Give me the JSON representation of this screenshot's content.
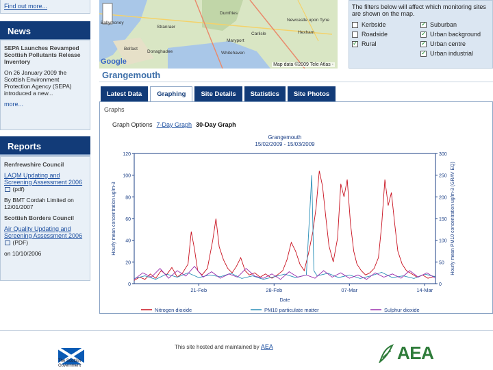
{
  "sidebar": {
    "top_link": "Find out more...",
    "news": {
      "heading": "News",
      "headline": "SEPA Launches Revamped Scottish Pollutants Release Inventory",
      "text": "On 26 January 2009 the Scottish Environment Protection Agency (SEPA) introduced a new...",
      "more": "more..."
    },
    "reports": {
      "heading": "Reports",
      "council1": "Renfrewshire Council",
      "link1": "LAQM Updating and Screening Assessment 2006",
      "link1_suffix": "(pdf)",
      "by1": "By BMT Cordah Limited on 12/01/2007",
      "council2": "Scottish Borders Council",
      "link2": "Air Quality Updating and Screening Assessment 2006",
      "link2_suffix": "(PDF)",
      "by2": "on 10/10/2006"
    }
  },
  "map": {
    "copyright": "Map data ©2009 Tele Atlas -",
    "google": "Google",
    "labels": [
      "Dumfries",
      "Stranraer",
      "Ballymoney",
      "Newcastle upon Tyne",
      "Belfast",
      "Donaghadee",
      "Maryport",
      "Carlisle",
      "Hexham",
      "Whitehaven"
    ]
  },
  "filters": {
    "note": "The filters below will affect which monitoring sites are shown on the map.",
    "items": [
      {
        "label": "Kerbside",
        "checked": false
      },
      {
        "label": "Suburban",
        "checked": true
      },
      {
        "label": "Roadside",
        "checked": false
      },
      {
        "label": "Urban background",
        "checked": true
      },
      {
        "label": "Rural",
        "checked": true
      },
      {
        "label": "Urban centre",
        "checked": true
      },
      {
        "label": "",
        "checked": false
      },
      {
        "label": "Urban industrial",
        "checked": true
      }
    ]
  },
  "station": {
    "title": "Grangemouth"
  },
  "tabs": [
    "Latest Data",
    "Graphing",
    "Site Details",
    "Statistics",
    "Site Photos"
  ],
  "active_tab": 1,
  "content": {
    "graphs_label": "Graphs",
    "graph_options": "Graph Options",
    "opt_7day": "7-Day Graph",
    "opt_30day": "30-Day Graph"
  },
  "chart_data": {
    "type": "line",
    "title": "Grangemouth",
    "subtitle": "15/02/2009 - 15/03/2009",
    "xlabel": "Date",
    "ylabel_left": "Hourly mean concentration ug/m-3",
    "ylabel_right": "Hourly mean PM10 concentration ug/m-3 (GRAV EQ)",
    "ylim_left": [
      0,
      120
    ],
    "ylim_right": [
      0,
      300
    ],
    "yticks_left": [
      0,
      20,
      40,
      60,
      80,
      100,
      120
    ],
    "yticks_right": [
      0,
      50,
      100,
      150,
      200,
      250,
      300
    ],
    "xticks": [
      "21-Feb",
      "28-Feb",
      "07-Mar",
      "14-Mar"
    ],
    "x_range_days": [
      0,
      28
    ],
    "xtick_days": [
      6,
      13,
      20,
      27
    ],
    "legend_position": "bottom",
    "series": [
      {
        "name": "Nitrogen dioxide",
        "axis": "left",
        "color": "#c8101e",
        "points": [
          [
            0,
            3
          ],
          [
            0.5,
            6
          ],
          [
            1,
            4
          ],
          [
            1.5,
            9
          ],
          [
            2,
            5
          ],
          [
            2.5,
            12
          ],
          [
            3,
            8
          ],
          [
            3.5,
            15
          ],
          [
            4,
            6
          ],
          [
            4.5,
            10
          ],
          [
            5,
            18
          ],
          [
            5.3,
            48
          ],
          [
            5.6,
            32
          ],
          [
            5.9,
            12
          ],
          [
            6.3,
            8
          ],
          [
            6.8,
            14
          ],
          [
            7.3,
            40
          ],
          [
            7.6,
            60
          ],
          [
            7.9,
            34
          ],
          [
            8.3,
            22
          ],
          [
            8.7,
            14
          ],
          [
            9.1,
            10
          ],
          [
            9.5,
            16
          ],
          [
            9.9,
            24
          ],
          [
            10.3,
            12
          ],
          [
            10.7,
            8
          ],
          [
            11.2,
            10
          ],
          [
            11.7,
            6
          ],
          [
            12.2,
            9
          ],
          [
            12.8,
            5
          ],
          [
            13.3,
            8
          ],
          [
            13.8,
            12
          ],
          [
            14.2,
            22
          ],
          [
            14.6,
            38
          ],
          [
            15,
            30
          ],
          [
            15.4,
            18
          ],
          [
            15.8,
            12
          ],
          [
            16.2,
            28
          ],
          [
            16.6,
            48
          ],
          [
            16.9,
            70
          ],
          [
            17.2,
            104
          ],
          [
            17.5,
            90
          ],
          [
            17.8,
            62
          ],
          [
            18.1,
            35
          ],
          [
            18.5,
            20
          ],
          [
            18.9,
            42
          ],
          [
            19.2,
            92
          ],
          [
            19.5,
            80
          ],
          [
            19.8,
            96
          ],
          [
            20.1,
            55
          ],
          [
            20.4,
            30
          ],
          [
            20.7,
            18
          ],
          [
            21.1,
            12
          ],
          [
            21.5,
            8
          ],
          [
            21.9,
            10
          ],
          [
            22.3,
            14
          ],
          [
            22.7,
            24
          ],
          [
            23,
            54
          ],
          [
            23.3,
            96
          ],
          [
            23.6,
            72
          ],
          [
            23.9,
            84
          ],
          [
            24.2,
            56
          ],
          [
            24.5,
            30
          ],
          [
            24.9,
            18
          ],
          [
            25.3,
            12
          ],
          [
            25.8,
            9
          ],
          [
            26.3,
            6
          ],
          [
            26.8,
            8
          ],
          [
            27.3,
            5
          ],
          [
            28,
            7
          ]
        ]
      },
      {
        "name": "PM10 particulate matter",
        "axis": "right",
        "color": "#2a8fb8",
        "points": [
          [
            0,
            12
          ],
          [
            1,
            18
          ],
          [
            2,
            10
          ],
          [
            3,
            22
          ],
          [
            4,
            15
          ],
          [
            5,
            25
          ],
          [
            6,
            14
          ],
          [
            7,
            20
          ],
          [
            8,
            16
          ],
          [
            9,
            24
          ],
          [
            10,
            12
          ],
          [
            11,
            18
          ],
          [
            12,
            10
          ],
          [
            13,
            16
          ],
          [
            14,
            22
          ],
          [
            15,
            14
          ],
          [
            16,
            20
          ],
          [
            16.5,
            250
          ],
          [
            16.7,
            30
          ],
          [
            17,
            18
          ],
          [
            18,
            24
          ],
          [
            19,
            14
          ],
          [
            20,
            20
          ],
          [
            21,
            12
          ],
          [
            22,
            18
          ],
          [
            23,
            26
          ],
          [
            24,
            14
          ],
          [
            25,
            18
          ],
          [
            26,
            12
          ],
          [
            27,
            22
          ],
          [
            28,
            16
          ]
        ]
      },
      {
        "name": "Sulphur dioxide",
        "axis": "left",
        "color": "#9b2fae",
        "points": [
          [
            0,
            4
          ],
          [
            0.8,
            10
          ],
          [
            1.6,
            6
          ],
          [
            2.4,
            14
          ],
          [
            3.2,
            5
          ],
          [
            4,
            12
          ],
          [
            4.8,
            7
          ],
          [
            5.6,
            16
          ],
          [
            6.4,
            6
          ],
          [
            7.2,
            11
          ],
          [
            8,
            5
          ],
          [
            8.8,
            9
          ],
          [
            9.6,
            6
          ],
          [
            10.4,
            14
          ],
          [
            11.2,
            7
          ],
          [
            12,
            5
          ],
          [
            12.8,
            9
          ],
          [
            13.6,
            4
          ],
          [
            14.4,
            11
          ],
          [
            15.2,
            6
          ],
          [
            16,
            8
          ],
          [
            16.8,
            5
          ],
          [
            17.6,
            12
          ],
          [
            18.4,
            6
          ],
          [
            19.2,
            10
          ],
          [
            20,
            5
          ],
          [
            20.8,
            8
          ],
          [
            21.6,
            4
          ],
          [
            22.4,
            10
          ],
          [
            23.2,
            6
          ],
          [
            24,
            9
          ],
          [
            24.8,
            5
          ],
          [
            25.6,
            12
          ],
          [
            26.4,
            6
          ],
          [
            27.2,
            10
          ],
          [
            28,
            5
          ]
        ]
      }
    ]
  },
  "footer": {
    "hosted_prefix": "This site hosted and maintained by",
    "hosted_link": "AEA",
    "scot_line1": "The Scottish",
    "scot_line2": "Government",
    "aea": "AEA"
  }
}
